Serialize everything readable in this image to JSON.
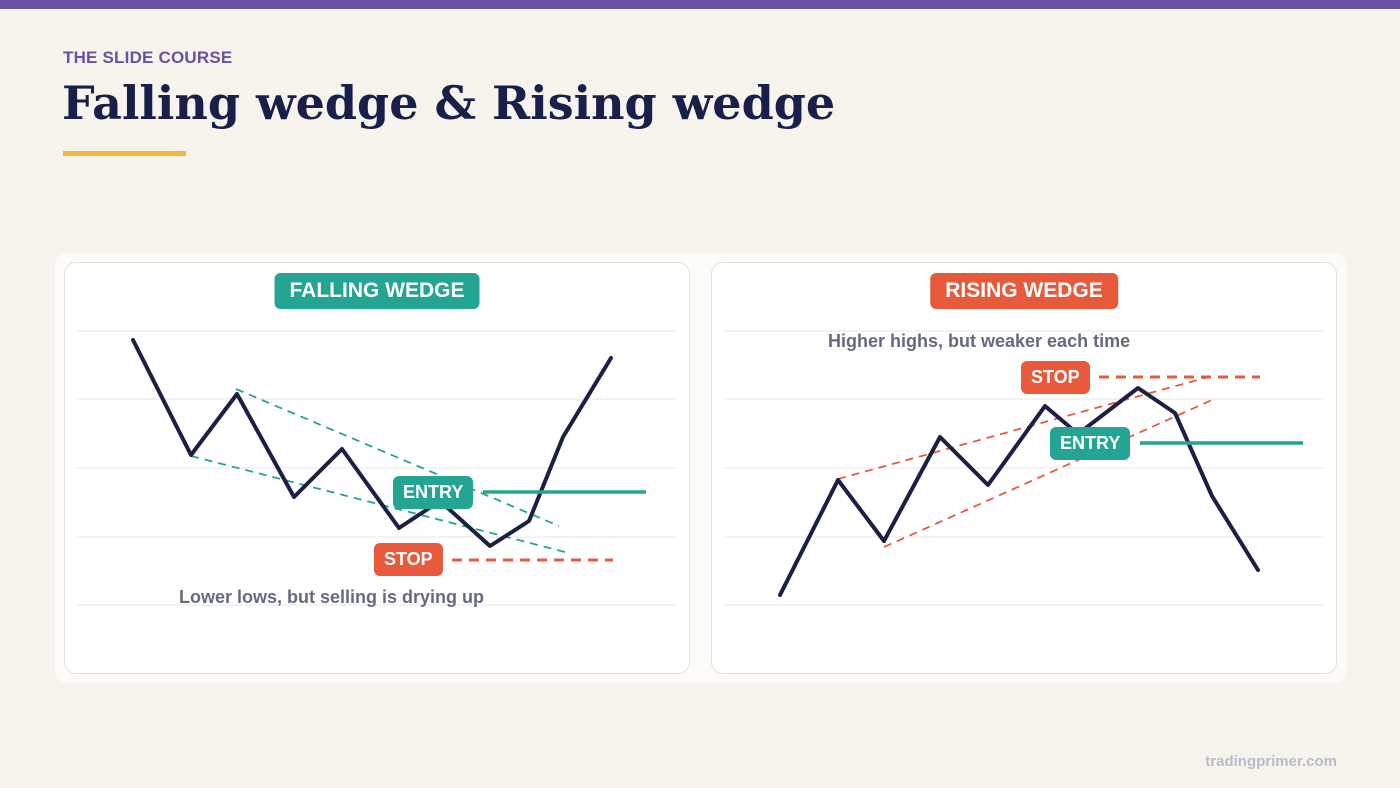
{
  "header": {
    "eyebrow": "THE SLIDE COURSE",
    "title": "Falling wedge & Rising wedge"
  },
  "colors": {
    "accent_purple": "#6a51a3",
    "title_navy": "#18204a",
    "underline_gold": "#f0b93a",
    "teal": "#24a594",
    "red": "#e85a3c",
    "price_line": "#1b1f45"
  },
  "falling_wedge": {
    "title": "FALLING WEDGE",
    "entry_label": "ENTRY",
    "stop_label": "STOP",
    "caption": "Lower lows, but selling is drying up"
  },
  "rising_wedge": {
    "title": "RISING WEDGE",
    "entry_label": "ENTRY",
    "stop_label": "STOP",
    "caption": "Higher highs, but weaker each time"
  },
  "footer": {
    "site": "tradingprimer.com"
  }
}
